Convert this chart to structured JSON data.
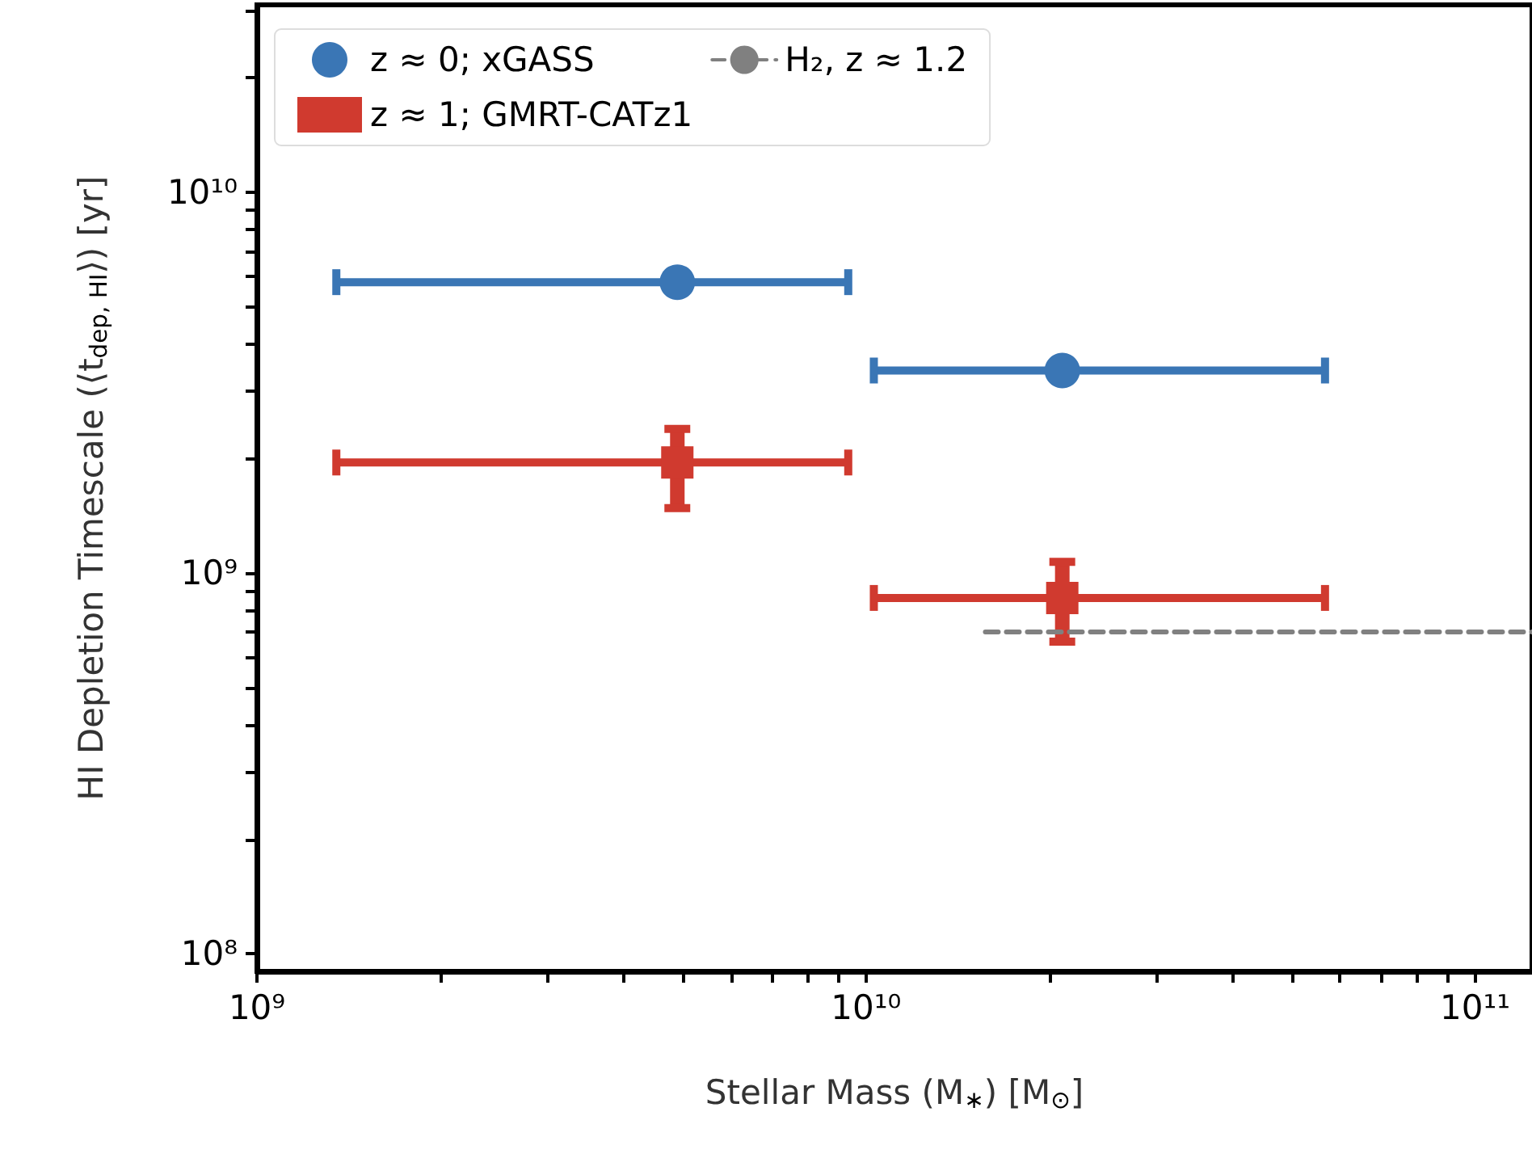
{
  "chart_data": {
    "type": "scatter",
    "xlabel": "Stellar Mass (M$_{∗}$) [M$_{⊙}$]",
    "ylabel": "HI Depletion Timescale (⟨t$_{dep, HI}$⟩) [yr]",
    "log": "xy",
    "xlim": [
      1000000000.0,
      124000000000.0
    ],
    "ylim": [
      90000000.0,
      31000000000.0
    ],
    "xticks": [
      {
        "value": 1000000000.0,
        "label": "10⁹"
      },
      {
        "value": 2000000000.0,
        "label": null
      },
      {
        "value": 3000000000.0,
        "label": null
      },
      {
        "value": 4000000000.0,
        "label": null
      },
      {
        "value": 5000000000.0,
        "label": null
      },
      {
        "value": 6000000000.0,
        "label": null
      },
      {
        "value": 7000000000.0,
        "label": null
      },
      {
        "value": 8000000000.0,
        "label": null
      },
      {
        "value": 9000000000.0,
        "label": null
      },
      {
        "value": 10000000000.0,
        "label": "10¹⁰"
      },
      {
        "value": 20000000000.0,
        "label": null
      },
      {
        "value": 30000000000.0,
        "label": null
      },
      {
        "value": 40000000000.0,
        "label": null
      },
      {
        "value": 50000000000.0,
        "label": null
      },
      {
        "value": 60000000000.0,
        "label": null
      },
      {
        "value": 70000000000.0,
        "label": null
      },
      {
        "value": 80000000000.0,
        "label": null
      },
      {
        "value": 90000000000.0,
        "label": null
      },
      {
        "value": 100000000000.0,
        "label": "10¹¹"
      }
    ],
    "yticks": [
      {
        "value": 100000000.0,
        "label": "10⁸"
      },
      {
        "value": 200000000.0,
        "label": null
      },
      {
        "value": 300000000.0,
        "label": null
      },
      {
        "value": 400000000.0,
        "label": null
      },
      {
        "value": 500000000.0,
        "label": null
      },
      {
        "value": 600000000.0,
        "label": null
      },
      {
        "value": 700000000.0,
        "label": null
      },
      {
        "value": 800000000.0,
        "label": null
      },
      {
        "value": 900000000.0,
        "label": null
      },
      {
        "value": 1000000000.0,
        "label": "10⁹"
      },
      {
        "value": 2000000000.0,
        "label": null
      },
      {
        "value": 3000000000.0,
        "label": null
      },
      {
        "value": 4000000000.0,
        "label": null
      },
      {
        "value": 5000000000.0,
        "label": null
      },
      {
        "value": 6000000000.0,
        "label": null
      },
      {
        "value": 7000000000.0,
        "label": null
      },
      {
        "value": 8000000000.0,
        "label": null
      },
      {
        "value": 9000000000.0,
        "label": null
      },
      {
        "value": 10000000000.0,
        "label": "10¹⁰"
      },
      {
        "value": 20000000000.0,
        "label": null
      },
      {
        "value": 30000000000.0,
        "label": null
      }
    ],
    "grid": false,
    "legend": "top left",
    "series": [
      {
        "name": "z ≈ 0; xGASS",
        "color": "#3a76b5",
        "marker": "circle",
        "x": [
          4900000000.0,
          21000000000.0
        ],
        "values": [
          5800000000.0,
          3400000000.0
        ],
        "xerrors": [
          [
            1350000000.0,
            9350000000.0
          ],
          [
            10300000000.0,
            56700000000.0
          ]
        ]
      },
      {
        "name": "z ≈ 1; GMRT-CATz1",
        "color": "#d03a2f",
        "marker": "square",
        "x": [
          4900000000.0,
          21000000000.0
        ],
        "values": [
          1950000000.0,
          860000000.0
        ],
        "xerrors": [
          [
            1350000000.0,
            9350000000.0
          ],
          [
            10300000000.0,
            56700000000.0
          ]
        ],
        "errors": [
          [
            1480000000.0,
            2390000000.0
          ],
          [
            660000000.0,
            1070000000.0
          ]
        ]
      },
      {
        "name": "H₂, z ≈ 1.2",
        "type": "line",
        "color": "#808080",
        "marker": "none",
        "line_style": "dashed",
        "x": [
          15700000000.0,
          124000000000.0
        ],
        "values": [
          700000000.0,
          700000000.0
        ]
      }
    ]
  }
}
